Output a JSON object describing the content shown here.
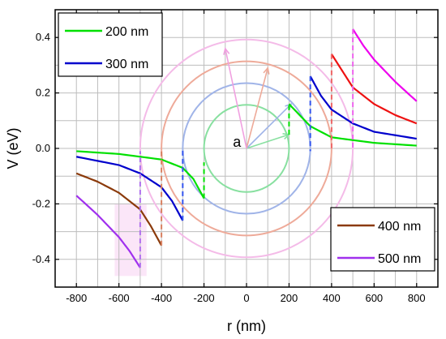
{
  "chart_data": {
    "type": "line",
    "title": "",
    "xlabel": "r (nm)",
    "ylabel": "V (eV)",
    "xlim": [
      -900,
      900
    ],
    "ylim": [
      -0.5,
      0.5
    ],
    "xticks": [
      -800,
      -600,
      -400,
      -200,
      0,
      200,
      400,
      600,
      800
    ],
    "yticks": [
      -0.4,
      -0.2,
      0.0,
      0.2,
      0.4
    ],
    "xtick_labels": [
      "-800",
      "-600",
      "-400",
      "-200",
      "0",
      "200",
      "400",
      "600",
      "800"
    ],
    "ytick_labels": [
      "-0.4",
      "-0.2",
      "0.0",
      "0.2",
      "0.4"
    ],
    "grid": true,
    "annotation": "a",
    "legends": [
      {
        "placement": "top-left",
        "entries": [
          "200 nm",
          "300 nm"
        ]
      },
      {
        "placement": "bottom-right",
        "entries": [
          "400 nm",
          "500 nm"
        ]
      }
    ],
    "series": [
      {
        "name": "200 nm",
        "color": "#00e000",
        "radius": 200,
        "k": 32,
        "left": {
          "x": [
            -800,
            -600,
            -400,
            -300,
            -250,
            -200
          ],
          "y": [
            -0.01,
            -0.02,
            -0.04,
            -0.07,
            -0.11,
            -0.18
          ]
        },
        "right": {
          "x": [
            200,
            250,
            300,
            400,
            600,
            800
          ],
          "y": [
            0.16,
            0.12,
            0.08,
            0.04,
            0.02,
            0.01
          ]
        }
      },
      {
        "name": "300 nm",
        "color": "#0000cc",
        "radius": 300,
        "k": 72,
        "left": {
          "x": [
            -800,
            -600,
            -500,
            -400,
            -350,
            -300
          ],
          "y": [
            -0.03,
            -0.06,
            -0.09,
            -0.14,
            -0.19,
            -0.26
          ]
        },
        "right": {
          "x": [
            300,
            350,
            400,
            500,
            600,
            800
          ],
          "y": [
            0.26,
            0.19,
            0.14,
            0.09,
            0.06,
            0.035
          ]
        }
      },
      {
        "name": "400 nm",
        "color": "#8b3a0a",
        "radius": 400,
        "k": 128,
        "left": {
          "x": [
            -800,
            -700,
            -600,
            -500,
            -450,
            -400
          ],
          "y": [
            -0.09,
            -0.12,
            -0.16,
            -0.22,
            -0.28,
            -0.35
          ]
        }
      },
      {
        "name": "",
        "color": "#ee1111",
        "radius": 400,
        "k": 128,
        "right": {
          "x": [
            400,
            450,
            500,
            600,
            700,
            800
          ],
          "y": [
            0.34,
            0.28,
            0.22,
            0.16,
            0.12,
            0.09
          ]
        }
      },
      {
        "name": "500 nm",
        "color": "#a030ee",
        "radius": 500,
        "k": 200,
        "left": {
          "x": [
            -800,
            -700,
            -650,
            -600,
            -550,
            -500
          ],
          "y": [
            -0.17,
            -0.24,
            -0.28,
            -0.32,
            -0.37,
            -0.43
          ]
        }
      },
      {
        "name": "",
        "color": "#ee00ee",
        "radius": 500,
        "k": 200,
        "right": {
          "x": [
            500,
            550,
            600,
            650,
            700,
            800
          ],
          "y": [
            0.43,
            0.37,
            0.32,
            0.28,
            0.24,
            0.17
          ]
        }
      }
    ],
    "jumps": [
      {
        "x": -200,
        "y": [
          -0.18,
          -0.05
        ],
        "color": "#00e000"
      },
      {
        "x": 200,
        "y": [
          0.05,
          0.16
        ],
        "color": "#00e000"
      },
      {
        "x": -300,
        "y": [
          -0.26,
          0.0
        ],
        "color": "#3355ee"
      },
      {
        "x": 300,
        "y": [
          0.26,
          -0.01
        ],
        "color": "#3355ee"
      },
      {
        "x": -400,
        "y": [
          -0.35,
          -0.01
        ],
        "color": "#d98060"
      },
      {
        "x": 400,
        "y": [
          0.34,
          -0.01
        ],
        "color": "#ee6666"
      },
      {
        "x": -500,
        "y": [
          -0.43,
          -0.01
        ],
        "color": "#b070ee"
      },
      {
        "x": 500,
        "y": [
          0.43,
          0.0
        ],
        "color": "#ee66ee"
      }
    ],
    "circles": [
      {
        "radius": 200,
        "color": "#88e0a0"
      },
      {
        "radius": 300,
        "color": "#a0b4e8"
      },
      {
        "radius": 400,
        "color": "#eeaa99"
      },
      {
        "radius": 500,
        "color": "#f4bbe8"
      }
    ],
    "arrows": [
      {
        "to": [
          200,
          0.05
        ],
        "color": "#88e0a0"
      },
      {
        "to": [
          210,
          0.16
        ],
        "color": "#a0b4e8"
      },
      {
        "to": [
          100,
          0.29
        ],
        "color": "#eeaa99"
      },
      {
        "to": [
          -100,
          0.36
        ],
        "color": "#f0a0e0"
      }
    ]
  }
}
